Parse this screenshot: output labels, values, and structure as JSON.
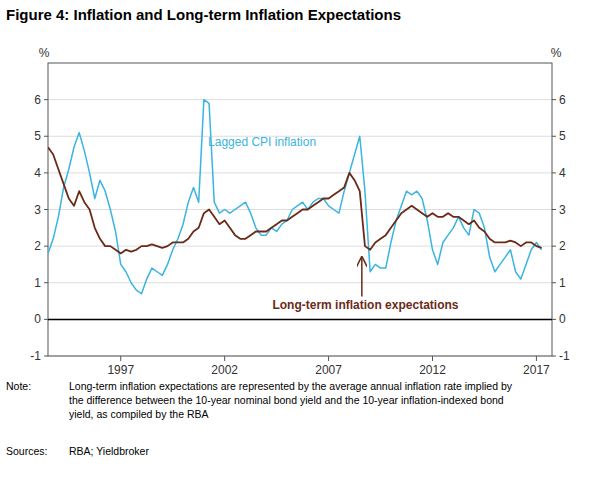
{
  "chart_data": {
    "type": "line",
    "title": "Figure 4: Inflation and Long-term Inflation Expectations",
    "note_label": "Note:",
    "note_text": "Long-term inflation expectations are represented by the average annual inflation rate implied by\nthe difference between the 10-year nominal bond yield and the 10-year inflation-indexed bond\nyield, as compiled by the RBA",
    "sources_label": "Sources:",
    "sources_text": "RBA; Yieldbroker",
    "ylabel": "%",
    "y2label": "%",
    "grid": true,
    "xlim": [
      1993.5,
      2017.75
    ],
    "xticks": [
      1997,
      2002,
      2007,
      2012,
      2017
    ],
    "ylim": [
      -1,
      7
    ],
    "yticks": [
      -1,
      0,
      1,
      2,
      3,
      4,
      5,
      6
    ],
    "y2lim": [
      -1,
      7
    ],
    "y2ticks": [
      -1,
      0,
      1,
      2,
      3,
      4,
      5,
      6
    ],
    "x": [
      1993.5,
      1993.75,
      1994.0,
      1994.25,
      1994.5,
      1994.75,
      1995.0,
      1995.25,
      1995.5,
      1995.75,
      1996.0,
      1996.25,
      1996.5,
      1996.75,
      1997.0,
      1997.25,
      1997.5,
      1997.75,
      1998.0,
      1998.25,
      1998.5,
      1998.75,
      1999.0,
      1999.25,
      1999.5,
      1999.75,
      2000.0,
      2000.25,
      2000.5,
      2000.75,
      2001.0,
      2001.25,
      2001.5,
      2001.75,
      2002.0,
      2002.25,
      2002.5,
      2002.75,
      2003.0,
      2003.25,
      2003.5,
      2003.75,
      2004.0,
      2004.25,
      2004.5,
      2004.75,
      2005.0,
      2005.25,
      2005.5,
      2005.75,
      2006.0,
      2006.25,
      2006.5,
      2006.75,
      2007.0,
      2007.25,
      2007.5,
      2007.75,
      2008.0,
      2008.25,
      2008.5,
      2008.75,
      2009.0,
      2009.25,
      2009.5,
      2009.75,
      2010.0,
      2010.25,
      2010.5,
      2010.75,
      2011.0,
      2011.25,
      2011.5,
      2011.75,
      2012.0,
      2012.25,
      2012.5,
      2012.75,
      2013.0,
      2013.25,
      2013.5,
      2013.75,
      2014.0,
      2014.25,
      2014.5,
      2014.75,
      2015.0,
      2015.25,
      2015.5,
      2015.75,
      2016.0,
      2016.25,
      2016.5,
      2016.75,
      2017.0,
      2017.25
    ],
    "series": [
      {
        "color": "#3ab4e0",
        "values": [
          1.8,
          2.2,
          2.8,
          3.6,
          4.1,
          4.7,
          5.1,
          4.6,
          4.0,
          3.3,
          3.8,
          3.5,
          3.0,
          2.4,
          1.5,
          1.3,
          1.0,
          0.8,
          0.7,
          1.1,
          1.4,
          1.3,
          1.2,
          1.5,
          1.9,
          2.2,
          2.6,
          3.2,
          3.6,
          3.2,
          6.0,
          5.9,
          3.2,
          2.9,
          3.0,
          2.9,
          3.0,
          3.1,
          3.2,
          2.9,
          2.5,
          2.3,
          2.3,
          2.5,
          2.4,
          2.6,
          2.7,
          3.0,
          3.1,
          3.2,
          3.0,
          3.2,
          3.3,
          3.3,
          3.1,
          3.0,
          2.9,
          3.5,
          4.0,
          4.5,
          5.0,
          3.5,
          1.3,
          1.5,
          1.4,
          1.4,
          2.1,
          2.7,
          3.1,
          3.5,
          3.4,
          3.5,
          3.3,
          2.7,
          1.9,
          1.5,
          2.1,
          2.3,
          2.5,
          2.8,
          2.5,
          2.3,
          3.0,
          2.9,
          2.5,
          1.7,
          1.3,
          1.5,
          1.7,
          1.9,
          1.3,
          1.1,
          1.5,
          1.9,
          2.1,
          1.9
        ]
      },
      {
        "color": "#6B2A18",
        "values": [
          4.7,
          4.5,
          4.1,
          3.7,
          3.3,
          3.1,
          3.5,
          3.2,
          3.0,
          2.5,
          2.2,
          2.0,
          2.0,
          1.9,
          1.8,
          1.9,
          1.85,
          1.9,
          2.0,
          2.0,
          2.05,
          2.0,
          1.95,
          2.0,
          2.1,
          2.1,
          2.1,
          2.2,
          2.4,
          2.5,
          2.9,
          3.0,
          2.8,
          2.6,
          2.7,
          2.5,
          2.3,
          2.2,
          2.2,
          2.3,
          2.4,
          2.4,
          2.4,
          2.5,
          2.6,
          2.7,
          2.7,
          2.8,
          2.9,
          3.0,
          3.0,
          3.1,
          3.2,
          3.3,
          3.3,
          3.4,
          3.5,
          3.6,
          4.0,
          3.8,
          3.5,
          2.0,
          1.9,
          2.1,
          2.2,
          2.3,
          2.5,
          2.7,
          2.9,
          3.0,
          3.1,
          3.0,
          2.9,
          2.8,
          2.9,
          2.8,
          2.8,
          2.9,
          2.8,
          2.8,
          2.7,
          2.6,
          2.7,
          2.5,
          2.4,
          2.2,
          2.1,
          2.1,
          2.1,
          2.15,
          2.1,
          2.0,
          2.1,
          2.1,
          2.0,
          1.95
        ]
      }
    ],
    "annotations": [
      {
        "text": "Lagged CPI inflation",
        "x": 2001.2,
        "y": 4.85
      },
      {
        "text": "Long-term inflation expectations",
        "x": 2004.3,
        "y": 0.38,
        "arrow_x": 2008.6,
        "arrow_y": 1.75
      }
    ]
  }
}
